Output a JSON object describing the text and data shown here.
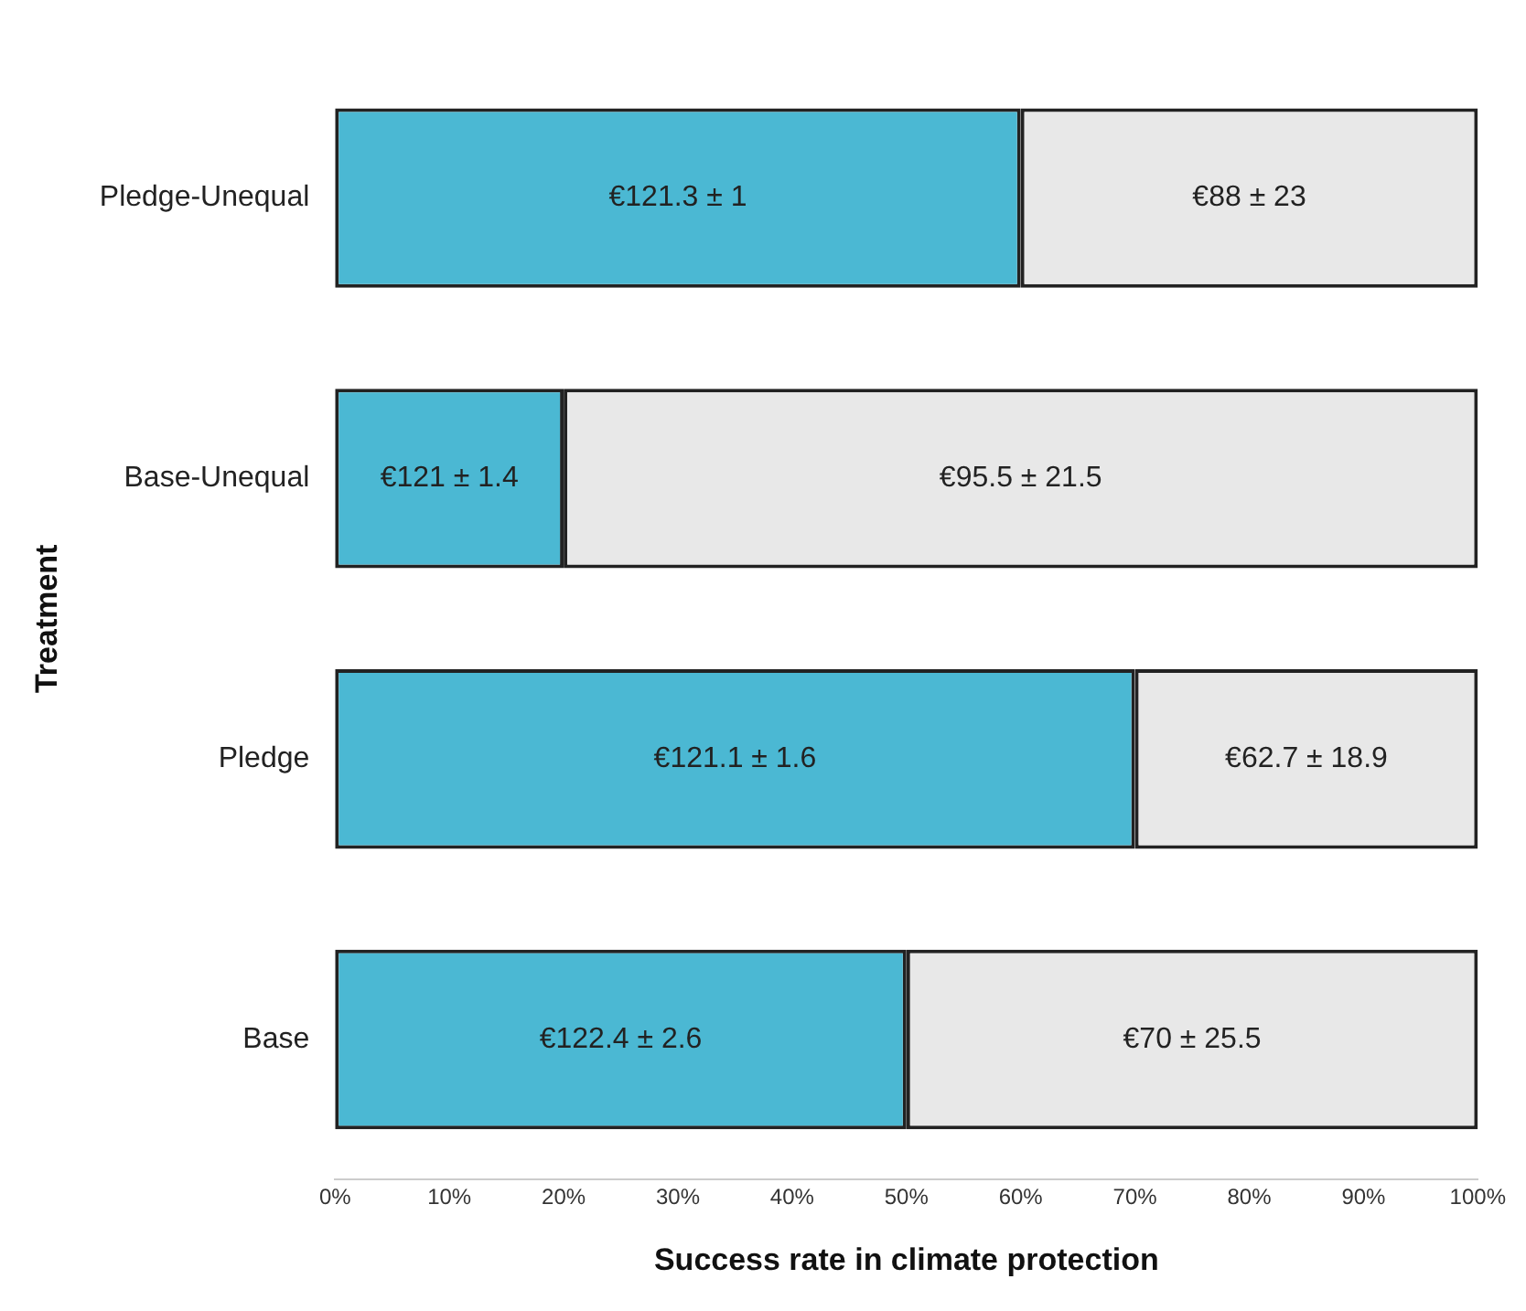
{
  "chart_data": {
    "type": "bar",
    "orientation": "horizontal",
    "stacked": true,
    "xlabel": "Success rate in climate protection",
    "ylabel": "Treatment",
    "categories": [
      "Pledge-Unequal",
      "Base-Unequal",
      "Pledge",
      "Base"
    ],
    "series": [
      {
        "color": "#4bb8d3",
        "values": [
          60,
          20,
          70,
          50
        ]
      },
      {
        "color": "#e8e8e8",
        "values": [
          40,
          80,
          30,
          50
        ]
      }
    ],
    "annotations": [
      "€121.3 ± 1",
      "€88 ± 23",
      "€121 ± 1.4",
      "€95.5 ± 21.5",
      "€121.1 ± 1.6",
      "€62.7 ± 18.9",
      "€122.4 ± 2.6",
      "€70 ± 25.5"
    ],
    "xlim": [
      0,
      100
    ],
    "xticks": [
      {
        "value": 0,
        "label": "0%"
      },
      {
        "value": 10,
        "label": "10%"
      },
      {
        "value": 20,
        "label": "20%"
      },
      {
        "value": 30,
        "label": "30%"
      },
      {
        "value": 40,
        "label": "40%"
      },
      {
        "value": 50,
        "label": "50%"
      },
      {
        "value": 60,
        "label": "60%"
      },
      {
        "value": 70,
        "label": "70%"
      },
      {
        "value": 80,
        "label": "80%"
      },
      {
        "value": 90,
        "label": "90%"
      },
      {
        "value": 100,
        "label": "100%"
      }
    ],
    "grid": false,
    "legend": false
  }
}
